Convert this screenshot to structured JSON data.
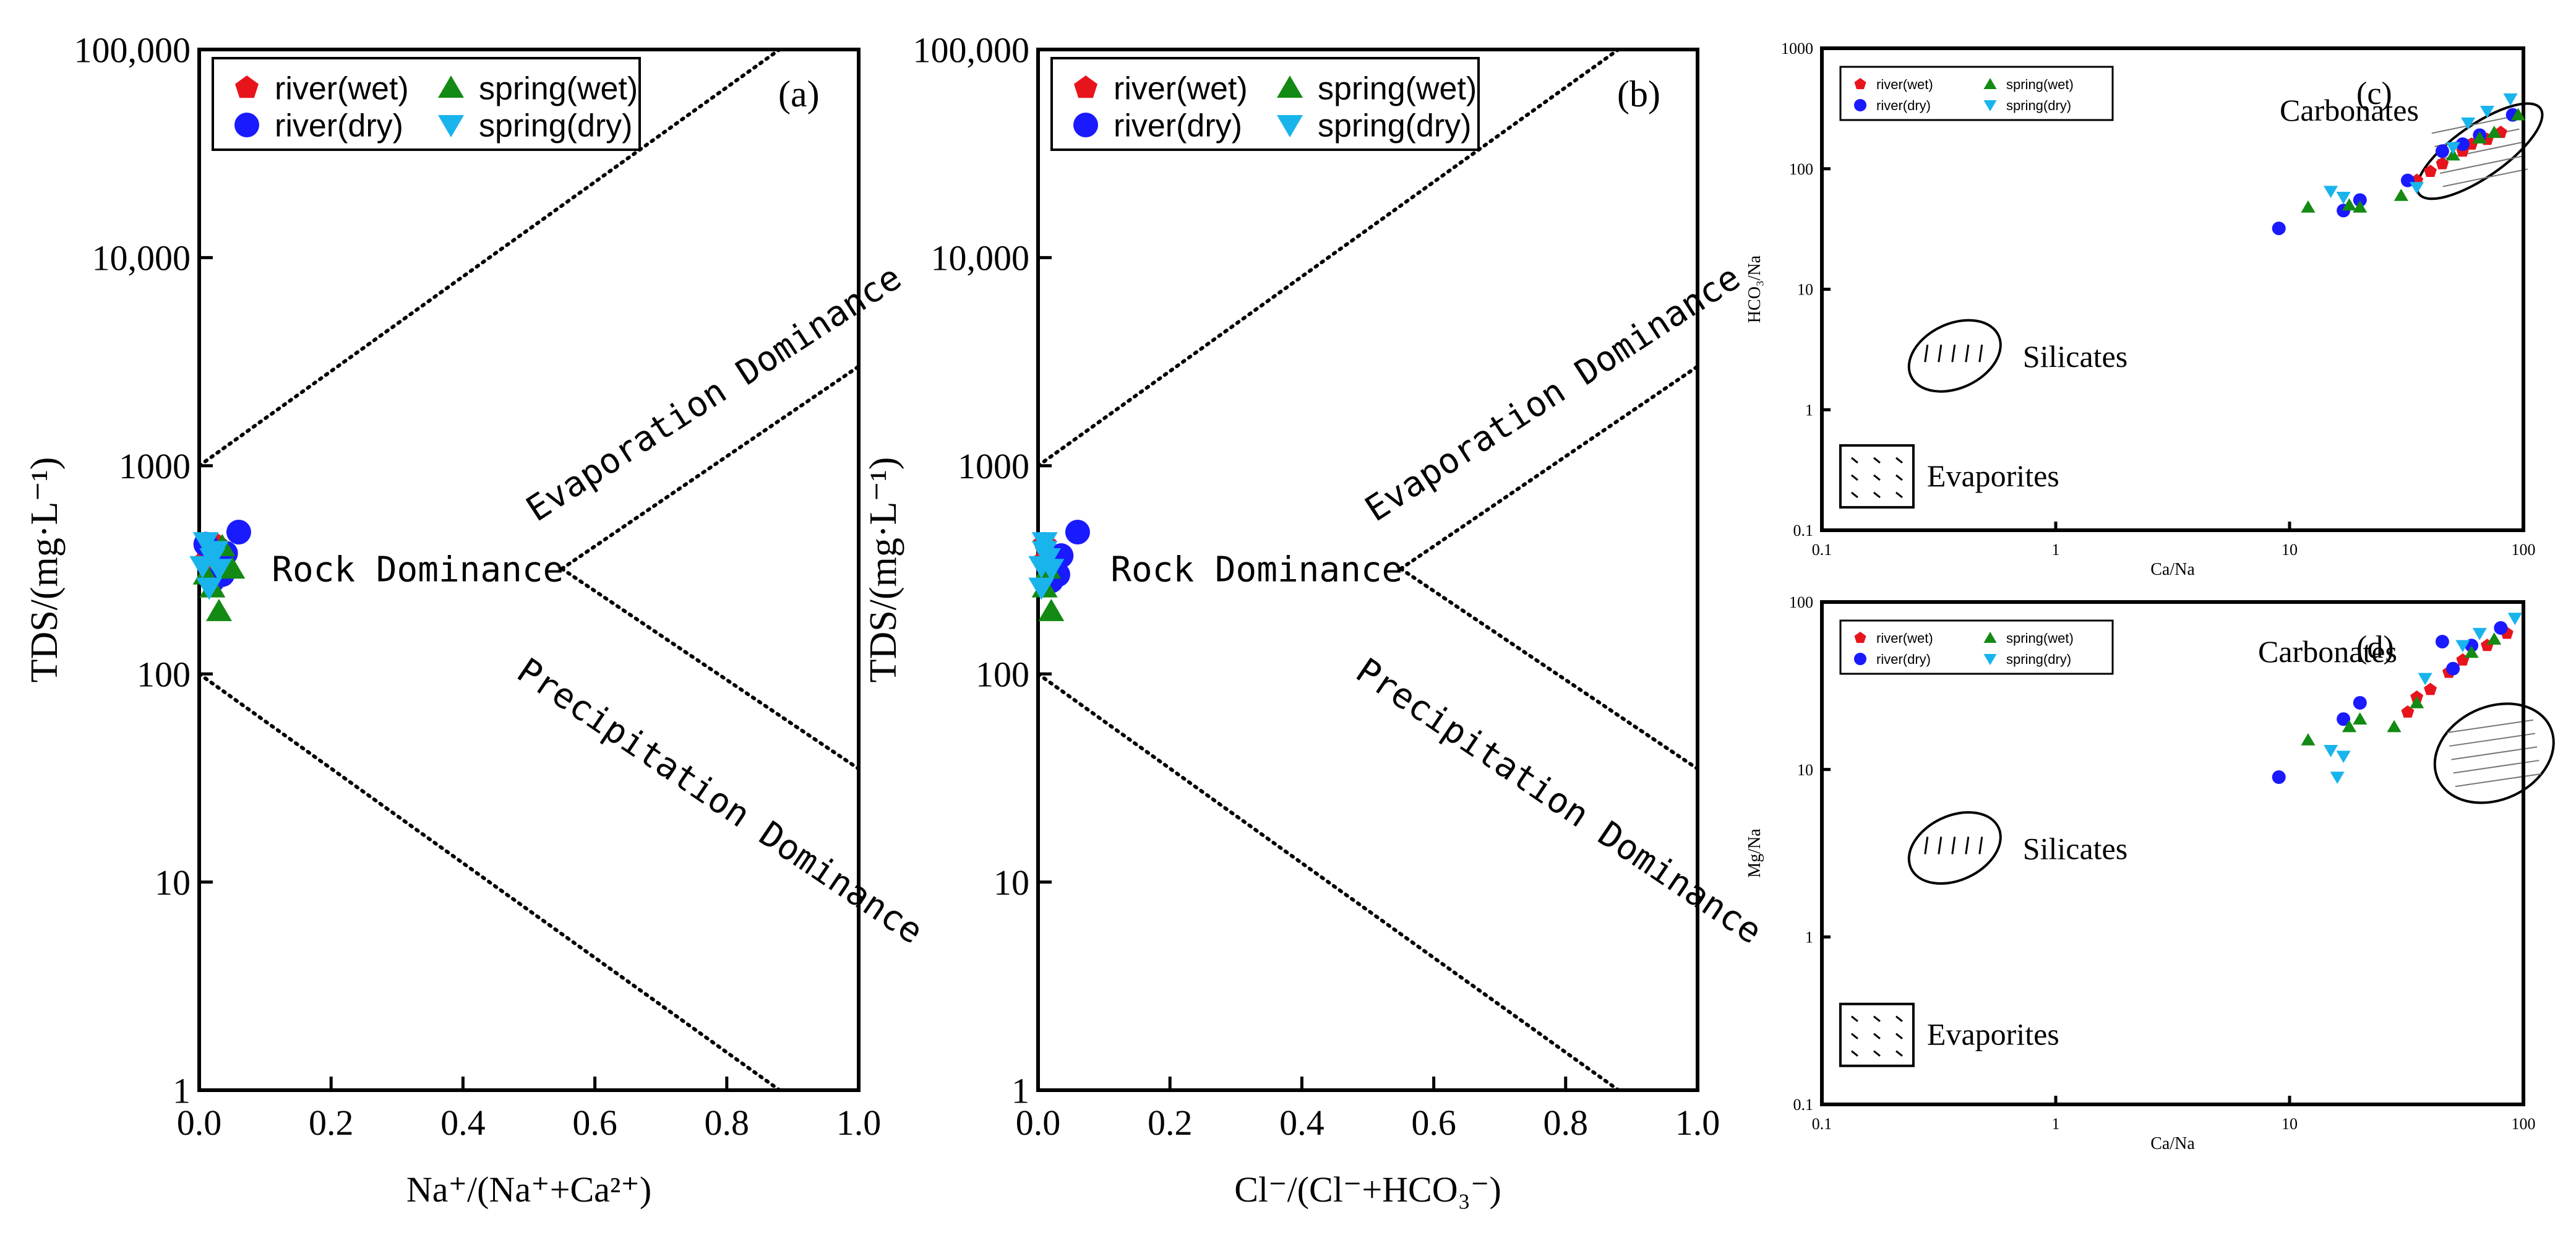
{
  "colors": {
    "river_wet": "#e8141c",
    "river_dry": "#1a1aff",
    "spring_wet": "#138a13",
    "spring_dry": "#19b4ec"
  },
  "legend_labels": {
    "river_wet": "river(wet)",
    "river_dry": "river(dry)",
    "spring_wet": "spring(wet)",
    "spring_dry": "spring(dry)"
  },
  "chart_data": [
    {
      "id": "a",
      "panel_label": "(a)",
      "type": "scatter",
      "x_scale": "linear",
      "y_scale": "log",
      "xlim": [
        0,
        1
      ],
      "ylim": [
        1,
        100000
      ],
      "x_ticks": [
        "0.0",
        "0.2",
        "0.4",
        "0.6",
        "0.8",
        "1.0"
      ],
      "y_ticks": [
        "1",
        "10",
        "100",
        "1000",
        "10,000",
        "100,000"
      ],
      "xlabel": "Na⁺/(Na⁺+Ca²⁺)",
      "ylabel": "TDS/(mg·L⁻¹)",
      "legend": [
        "river(wet)",
        "river(dry)",
        "spring(wet)",
        "spring(dry)"
      ],
      "regions": [
        "Evaporation Dominance",
        "Rock Dominance",
        "Precipitation Dominance"
      ],
      "series": [
        {
          "name": "river(wet)",
          "points": [
            [
              0.01,
              350
            ],
            [
              0.015,
              380
            ],
            [
              0.02,
              300
            ],
            [
              0.025,
              420
            ],
            [
              0.03,
              330
            ]
          ]
        },
        {
          "name": "river(dry)",
          "points": [
            [
              0.06,
              480
            ],
            [
              0.04,
              380
            ],
            [
              0.035,
              300
            ],
            [
              0.02,
              280
            ],
            [
              0.01,
              420
            ]
          ]
        },
        {
          "name": "spring(wet)",
          "points": [
            [
              0.03,
              200
            ],
            [
              0.05,
              320
            ],
            [
              0.02,
              260
            ],
            [
              0.035,
              410
            ],
            [
              0.01,
              300
            ]
          ]
        },
        {
          "name": "spring(dry)",
          "points": [
            [
              0.01,
              430
            ],
            [
              0.02,
              360
            ],
            [
              0.03,
              320
            ],
            [
              0.015,
              260
            ],
            [
              0.025,
              390
            ],
            [
              0.005,
              330
            ]
          ]
        }
      ]
    },
    {
      "id": "b",
      "panel_label": "(b)",
      "type": "scatter",
      "x_scale": "linear",
      "y_scale": "log",
      "xlim": [
        0,
        1
      ],
      "ylim": [
        1,
        100000
      ],
      "x_ticks": [
        "0.0",
        "0.2",
        "0.4",
        "0.6",
        "0.8",
        "1.0"
      ],
      "y_ticks": [
        "1",
        "10",
        "100",
        "1000",
        "10,000",
        "100,000"
      ],
      "xlabel": "Cl⁻/(Cl⁻+HCO₃⁻)",
      "ylabel": "TDS/(mg·L⁻¹)",
      "legend": [
        "river(wet)",
        "river(dry)",
        "spring(wet)",
        "spring(dry)"
      ],
      "regions": [
        "Evaporation Dominance",
        "Rock Dominance",
        "Precipitation Dominance"
      ],
      "series": [
        {
          "name": "river(wet)",
          "points": [
            [
              0.01,
              350
            ],
            [
              0.015,
              380
            ],
            [
              0.02,
              300
            ],
            [
              0.01,
              420
            ]
          ]
        },
        {
          "name": "river(dry)",
          "points": [
            [
              0.06,
              480
            ],
            [
              0.035,
              370
            ],
            [
              0.03,
              300
            ],
            [
              0.02,
              280
            ]
          ]
        },
        {
          "name": "spring(wet)",
          "points": [
            [
              0.02,
              200
            ],
            [
              0.015,
              320
            ],
            [
              0.01,
              260
            ]
          ]
        },
        {
          "name": "spring(dry)",
          "points": [
            [
              0.01,
              430
            ],
            [
              0.015,
              360
            ],
            [
              0.02,
              320
            ],
            [
              0.005,
              260
            ],
            [
              0.01,
              390
            ],
            [
              0.005,
              330
            ]
          ]
        }
      ]
    },
    {
      "id": "c",
      "panel_label": "(c)",
      "type": "scatter",
      "x_scale": "log",
      "y_scale": "log",
      "xlim": [
        0.1,
        100
      ],
      "ylim": [
        0.1,
        1000
      ],
      "x_ticks": [
        "0.1",
        "1",
        "10",
        "100"
      ],
      "y_ticks": [
        "0.1",
        "1",
        "10",
        "100",
        "1000"
      ],
      "xlabel": "Ca/Na",
      "ylabel": "HCO₃/Na",
      "legend": [
        "river(wet)",
        "river(dry)",
        "spring(wet)",
        "spring(dry)"
      ],
      "regions": [
        "Carbonates",
        "Silicates",
        "Evaporites"
      ],
      "series": [
        {
          "name": "river(wet)",
          "points": [
            [
              35,
              80
            ],
            [
              40,
              95
            ],
            [
              45,
              110
            ],
            [
              55,
              140
            ],
            [
              60,
              160
            ],
            [
              70,
              175
            ],
            [
              80,
              200
            ]
          ]
        },
        {
          "name": "river(dry)",
          "points": [
            [
              9,
              32
            ],
            [
              17,
              45
            ],
            [
              20,
              55
            ],
            [
              32,
              80
            ],
            [
              45,
              140
            ],
            [
              55,
              160
            ],
            [
              65,
              190
            ],
            [
              90,
              280
            ]
          ]
        },
        {
          "name": "spring(wet)",
          "points": [
            [
              12,
              48
            ],
            [
              18,
              50
            ],
            [
              20,
              48
            ],
            [
              30,
              60
            ],
            [
              50,
              130
            ],
            [
              65,
              180
            ],
            [
              75,
              200
            ],
            [
              95,
              280
            ]
          ]
        },
        {
          "name": "spring(dry)",
          "points": [
            [
              15,
              65
            ],
            [
              17,
              58
            ],
            [
              35,
              70
            ],
            [
              50,
              150
            ],
            [
              58,
              240
            ],
            [
              70,
              300
            ],
            [
              88,
              380
            ]
          ]
        }
      ]
    },
    {
      "id": "d",
      "panel_label": "(d)",
      "type": "scatter",
      "x_scale": "log",
      "y_scale": "log",
      "xlim": [
        0.1,
        100
      ],
      "ylim": [
        0.1,
        100
      ],
      "x_ticks": [
        "0.1",
        "1",
        "10",
        "100"
      ],
      "y_ticks": [
        "0.1",
        "1",
        "10",
        "100"
      ],
      "xlabel": "Ca/Na",
      "ylabel": "Mg/Na",
      "legend": [
        "river(wet)",
        "river(dry)",
        "spring(wet)",
        "spring(dry)"
      ],
      "regions": [
        "Carbonates",
        "Silicates",
        "Evaporites"
      ],
      "series": [
        {
          "name": "river(wet)",
          "points": [
            [
              32,
              22
            ],
            [
              35,
              27
            ],
            [
              40,
              30
            ],
            [
              48,
              38
            ],
            [
              55,
              45
            ],
            [
              70,
              55
            ],
            [
              85,
              65
            ]
          ]
        },
        {
          "name": "river(dry)",
          "points": [
            [
              9,
              9
            ],
            [
              17,
              20
            ],
            [
              20,
              25
            ],
            [
              45,
              58
            ],
            [
              50,
              40
            ],
            [
              60,
              55
            ],
            [
              80,
              70
            ]
          ]
        },
        {
          "name": "spring(wet)",
          "points": [
            [
              12,
              15
            ],
            [
              18,
              18
            ],
            [
              20,
              20
            ],
            [
              28,
              18
            ],
            [
              35,
              25
            ],
            [
              60,
              50
            ],
            [
              75,
              60
            ]
          ]
        },
        {
          "name": "spring(dry)",
          "points": [
            [
              15,
              13
            ],
            [
              16,
              9
            ],
            [
              17,
              12
            ],
            [
              38,
              35
            ],
            [
              55,
              55
            ],
            [
              65,
              65
            ],
            [
              92,
              80
            ]
          ]
        }
      ]
    }
  ]
}
